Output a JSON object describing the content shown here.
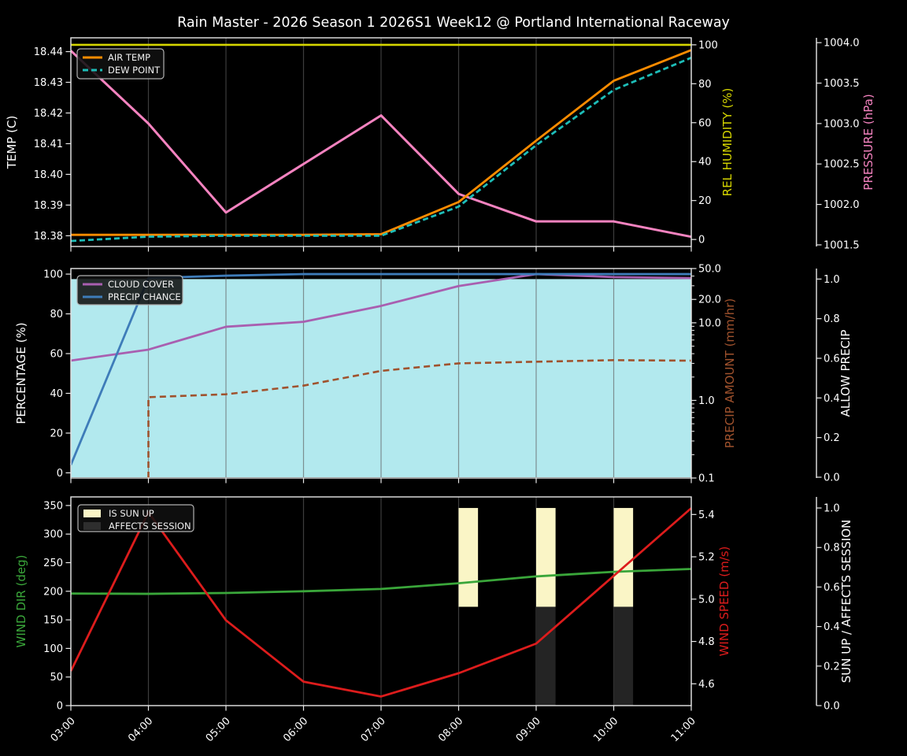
{
  "title": "Rain Master - 2026 Season 1 2026S1 Week12 @ Portland International Raceway",
  "background": "#000000",
  "text_color": "#ffffff",
  "spine_color": "#e8e8e8",
  "x_axis": {
    "tick_labels": [
      "03:00",
      "04:00",
      "05:00",
      "06:00",
      "07:00",
      "08:00",
      "09:00",
      "10:00",
      "11:00"
    ],
    "hours": [
      3,
      4,
      5,
      6,
      7,
      8,
      9,
      10,
      11
    ],
    "range": [
      3,
      11
    ]
  },
  "chart_data": [
    {
      "type": "line",
      "name": "temperature-humidity-pressure",
      "grid_color": "#3d3d3d",
      "axes": {
        "left": {
          "label": "TEMP (C)",
          "color": "#ffffff",
          "lim": [
            18.3765,
            18.4445
          ],
          "tick_vals": [
            18.38,
            18.39,
            18.4,
            18.41,
            18.42,
            18.43,
            18.44
          ],
          "tick_labels": [
            "18.38",
            "18.39",
            "18.40",
            "18.41",
            "18.42",
            "18.43",
            "18.44"
          ]
        },
        "right1": {
          "label": "REL HUMIDITY (%)",
          "color": "#d6d600",
          "lim": [
            -3.6,
            103.6
          ],
          "tick_vals": [
            0,
            20,
            40,
            60,
            80,
            100
          ],
          "tick_labels": [
            "0",
            "20",
            "40",
            "60",
            "80",
            "100"
          ]
        },
        "right2": {
          "label": "PRESSURE (hPa)",
          "color": "#f583c0",
          "lim": [
            1001.48,
            1004.06
          ],
          "tick_vals": [
            1001.5,
            1002.0,
            1002.5,
            1003.0,
            1003.5,
            1004.0
          ],
          "tick_labels": [
            "1001.5",
            "1002.0",
            "1002.5",
            "1003.0",
            "1003.5",
            "1004.0"
          ]
        }
      },
      "series": [
        {
          "name": "REL HUMIDITY",
          "axis": "right1",
          "kind": "line",
          "color": "#d6d600",
          "width": 2.6,
          "values": [
            100,
            100,
            100,
            100,
            100,
            100,
            100,
            100,
            100
          ]
        },
        {
          "name": "PRESSURE",
          "axis": "right2",
          "kind": "line",
          "color": "#f583c0",
          "width": 3,
          "values": [
            1003.9,
            1003.0,
            1001.9,
            1002.5,
            1003.1,
            1002.13,
            1001.79,
            1001.79,
            1001.6
          ]
        },
        {
          "name": "AIR TEMP",
          "axis": "left",
          "kind": "line",
          "color": "#ff8c00",
          "width": 2.8,
          "values": [
            18.3803,
            18.3803,
            18.3803,
            18.3803,
            18.3805,
            18.391,
            18.411,
            18.4305,
            18.4405
          ]
        },
        {
          "name": "DEW POINT",
          "axis": "left",
          "kind": "line",
          "color": "#1dbdb8",
          "width": 2.8,
          "dash": "7 4",
          "values": [
            18.3783,
            18.3797,
            18.38,
            18.38,
            18.38,
            18.3895,
            18.4095,
            18.4275,
            18.438
          ]
        }
      ],
      "legend": [
        {
          "label": "AIR TEMP",
          "color": "#ff8c00",
          "swatch": "line"
        },
        {
          "label": "DEW POINT",
          "color": "#1dbdb8",
          "swatch": "line",
          "dash": "7 4"
        }
      ]
    },
    {
      "type": "line",
      "name": "cloud-precipitation",
      "grid_color": "rgba(95,95,95,0.65)",
      "axes": {
        "left": {
          "label": "PERCENTAGE (%)",
          "color": "#ffffff",
          "lim": [
            -2.6,
            102.8
          ],
          "tick_vals": [
            0,
            20,
            40,
            60,
            80,
            100
          ],
          "tick_labels": [
            "0",
            "20",
            "40",
            "60",
            "80",
            "100"
          ]
        },
        "right1": {
          "label": "PRECIP AMOUNT (mm/hr)",
          "color": "#a0522d",
          "scale": "log",
          "lim": [
            0.1,
            50
          ],
          "tick_vals": [
            0.1,
            1.0,
            10.0,
            20.0,
            50.0
          ],
          "tick_labels": [
            "0.1",
            "1.0",
            "10.0",
            "20.0",
            "50.0"
          ],
          "minor_tick_vals": [
            0.2,
            0.3,
            0.4,
            0.5,
            0.6,
            0.7,
            0.8,
            0.9,
            2,
            3,
            4,
            5,
            6,
            7,
            8,
            9,
            30,
            40
          ]
        },
        "right2": {
          "label": "ALLOW PRECIP",
          "color": "#ffffff",
          "lim": [
            -0.004,
            1.053
          ],
          "tick_vals": [
            0.0,
            0.2,
            0.4,
            0.6,
            0.8,
            1.0
          ],
          "tick_labels": [
            "0.0",
            "0.2",
            "0.4",
            "0.6",
            "0.8",
            "1.0"
          ]
        }
      },
      "series": [
        {
          "name": "ALLOW PRECIP",
          "axis": "right2",
          "kind": "area",
          "color": "#b2e9ee",
          "base": 0,
          "values": [
            1,
            1,
            1,
            1,
            1,
            1,
            1,
            1,
            1
          ]
        },
        {
          "name": "CLOUD COVER",
          "axis": "left",
          "kind": "line",
          "color": "#a95fb0",
          "width": 2.8,
          "values": [
            56.5,
            62,
            73.5,
            76,
            84,
            94,
            100,
            98.5,
            98
          ]
        },
        {
          "name": "PRECIP CHANCE",
          "axis": "left",
          "kind": "line",
          "color": "#3e7cb9",
          "width": 2.8,
          "values": [
            4,
            98,
            99.2,
            100,
            100,
            100,
            100,
            100,
            100
          ]
        },
        {
          "name": "PRECIP AMOUNT",
          "axis": "right1",
          "kind": "line",
          "color": "#a0522d",
          "width": 2.6,
          "dash": "8 5",
          "rises_from_bottom": true,
          "values": [
            null,
            1.1,
            1.2,
            1.55,
            2.4,
            3.0,
            3.15,
            3.3,
            3.25
          ]
        }
      ],
      "legend": [
        {
          "label": "CLOUD COVER",
          "color": "#a95fb0",
          "swatch": "line"
        },
        {
          "label": "PRECIP CHANCE",
          "color": "#3e7cb9",
          "swatch": "line"
        }
      ]
    },
    {
      "type": "line",
      "name": "wind-sun",
      "grid_color": "#3d3d3d",
      "axes": {
        "left": {
          "label": "WIND DIR (deg)",
          "color": "#3aa63a",
          "lim": [
            0,
            365
          ],
          "tick_vals": [
            0,
            50,
            100,
            150,
            200,
            250,
            300,
            350
          ],
          "tick_labels": [
            "0",
            "50",
            "100",
            "150",
            "200",
            "250",
            "300",
            "350"
          ]
        },
        "right1": {
          "label": "WIND SPEED (m/s)",
          "color": "#dd1c1c",
          "lim": [
            4.497,
            5.483
          ],
          "tick_vals": [
            4.6,
            4.8,
            5.0,
            5.2,
            5.4
          ],
          "tick_labels": [
            "4.6",
            "4.8",
            "5.0",
            "5.2",
            "5.4"
          ]
        },
        "right2": {
          "label": "SUN UP / AFFECTS SESSION",
          "color": "#ffffff",
          "lim": [
            0,
            1.056
          ],
          "tick_vals": [
            0.0,
            0.2,
            0.4,
            0.6,
            0.8,
            1.0
          ],
          "tick_labels": [
            "0.0",
            "0.2",
            "0.4",
            "0.6",
            "0.8",
            "1.0"
          ]
        }
      },
      "series": [
        {
          "name": "IS SUN UP",
          "axis": "right2",
          "kind": "bars",
          "color": "#faf5c6",
          "bar_hours": [
            8,
            9,
            10
          ],
          "bar_from": 0.5,
          "bar_to": 1.0,
          "bar_width_hours": 0.25
        },
        {
          "name": "AFFECTS SESSION",
          "axis": "right2",
          "kind": "bars",
          "color": "#242424",
          "bar_hours": [
            9,
            10
          ],
          "bar_from": 0.0,
          "bar_to": 0.5,
          "bar_width_hours": 0.25
        },
        {
          "name": "WIND DIR",
          "axis": "left",
          "kind": "line",
          "color": "#3aa63a",
          "width": 2.8,
          "values": [
            196,
            195.5,
            197,
            200,
            204,
            214,
            226,
            234,
            239
          ]
        },
        {
          "name": "WIND SPEED",
          "axis": "right1",
          "kind": "line",
          "color": "#dd1c1c",
          "width": 2.8,
          "values": [
            4.66,
            5.41,
            4.9,
            4.61,
            4.54,
            4.65,
            4.79,
            5.11,
            5.43
          ]
        }
      ],
      "legend": [
        {
          "label": "IS SUN UP",
          "color": "#faf5c6",
          "swatch": "patch"
        },
        {
          "label": "AFFECTS SESSION",
          "color": "#2e2e2e",
          "swatch": "patch"
        }
      ]
    }
  ]
}
